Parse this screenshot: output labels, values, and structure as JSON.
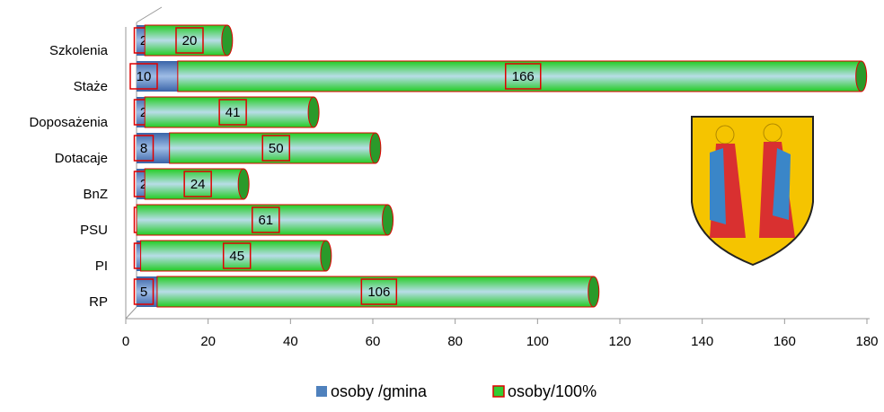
{
  "chart_data": {
    "type": "bar",
    "orientation": "horizontal",
    "stacked": true,
    "categories": [
      "Szkolenia",
      "Staże",
      "Doposażenia",
      "Dotacaje",
      "BnZ",
      "PSU",
      "PI",
      "RP"
    ],
    "series": [
      {
        "name": "osoby /gmina",
        "color": "#4f81bd",
        "values": [
          2,
          10,
          2,
          8,
          2,
          0,
          1,
          5
        ]
      },
      {
        "name": "osoby/100%",
        "color": "#33cc33",
        "values": [
          20,
          166,
          41,
          50,
          24,
          61,
          45,
          106
        ]
      }
    ],
    "xlim": [
      0,
      180
    ],
    "xticks": [
      0,
      20,
      40,
      60,
      80,
      100,
      120,
      140,
      160,
      180
    ],
    "legend": "bottom"
  }
}
